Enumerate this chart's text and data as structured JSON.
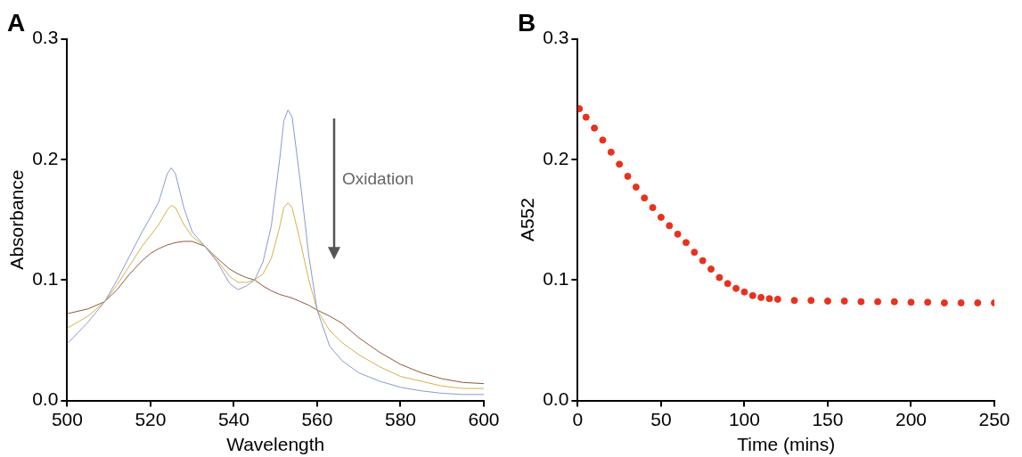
{
  "chart_data": [
    {
      "type": "line",
      "title": "A",
      "xlabel": "Wavelength",
      "ylabel": "Absorbance",
      "annotations": [
        "Oxidation"
      ],
      "x": [
        500,
        505,
        509,
        512,
        515,
        518,
        520,
        522,
        524,
        525,
        526,
        528,
        530,
        533,
        536,
        539,
        541,
        543,
        545,
        547,
        549,
        551,
        552,
        553,
        554,
        556,
        558,
        560,
        563,
        566,
        570,
        575,
        580,
        585,
        590,
        595,
        600
      ],
      "series": [
        {
          "color": "#8a9ad0",
          "values": [
            0.047,
            0.065,
            0.082,
            0.1,
            0.12,
            0.14,
            0.152,
            0.165,
            0.188,
            0.193,
            0.188,
            0.16,
            0.14,
            0.128,
            0.115,
            0.097,
            0.092,
            0.095,
            0.1,
            0.115,
            0.145,
            0.2,
            0.232,
            0.241,
            0.235,
            0.18,
            0.12,
            0.075,
            0.045,
            0.033,
            0.023,
            0.016,
            0.011,
            0.008,
            0.006,
            0.005,
            0.005
          ]
        },
        {
          "color": "#d4b24a",
          "values": [
            0.06,
            0.07,
            0.082,
            0.096,
            0.112,
            0.128,
            0.137,
            0.146,
            0.158,
            0.162,
            0.16,
            0.146,
            0.136,
            0.128,
            0.116,
            0.103,
            0.098,
            0.098,
            0.1,
            0.105,
            0.118,
            0.144,
            0.16,
            0.164,
            0.16,
            0.131,
            0.1,
            0.075,
            0.058,
            0.048,
            0.038,
            0.028,
            0.02,
            0.016,
            0.012,
            0.01,
            0.01
          ]
        },
        {
          "color": "#8b5a3c",
          "values": [
            0.072,
            0.076,
            0.082,
            0.092,
            0.105,
            0.116,
            0.122,
            0.126,
            0.129,
            0.13,
            0.131,
            0.132,
            0.132,
            0.128,
            0.118,
            0.109,
            0.105,
            0.102,
            0.1,
            0.095,
            0.091,
            0.088,
            0.087,
            0.086,
            0.085,
            0.082,
            0.079,
            0.075,
            0.07,
            0.064,
            0.052,
            0.04,
            0.03,
            0.023,
            0.018,
            0.015,
            0.014
          ]
        }
      ],
      "xlim": [
        500,
        600
      ],
      "xticks": [
        500,
        520,
        540,
        560,
        580,
        600
      ],
      "ylim": [
        0,
        0.3
      ],
      "yticks": [
        {
          "value": 0,
          "label": "0.0"
        },
        0.1,
        0.2,
        0.3
      ],
      "grid": false,
      "legend": false,
      "marker": "none",
      "line_style": "solid"
    },
    {
      "type": "scatter",
      "title": "B",
      "xlabel": "Time (mins)",
      "ylabel": "A552",
      "x": [
        1,
        5,
        10,
        15,
        20,
        25,
        30,
        35,
        40,
        45,
        50,
        55,
        60,
        65,
        70,
        75,
        80,
        85,
        90,
        95,
        100,
        105,
        110,
        115,
        120,
        130,
        140,
        150,
        160,
        170,
        180,
        190,
        200,
        210,
        220,
        230,
        240,
        250
      ],
      "series": [
        {
          "color": "#e8321e",
          "values": [
            0.242,
            0.235,
            0.226,
            0.216,
            0.206,
            0.196,
            0.186,
            0.177,
            0.168,
            0.16,
            0.152,
            0.145,
            0.138,
            0.131,
            0.123,
            0.116,
            0.109,
            0.102,
            0.097,
            0.093,
            0.09,
            0.087,
            0.0855,
            0.0845,
            0.084,
            0.083,
            0.083,
            0.0825,
            0.0825,
            0.082,
            0.082,
            0.082,
            0.0815,
            0.0815,
            0.081,
            0.081,
            0.081,
            0.081
          ]
        }
      ],
      "xlim": [
        0,
        250
      ],
      "xticks": [
        0,
        50,
        100,
        150,
        200,
        250
      ],
      "ylim": [
        0,
        0.3
      ],
      "yticks": [
        {
          "value": 0,
          "label": "0.0"
        },
        0.1,
        0.2,
        0.3
      ],
      "grid": false,
      "legend": false,
      "marker": "circle"
    }
  ]
}
